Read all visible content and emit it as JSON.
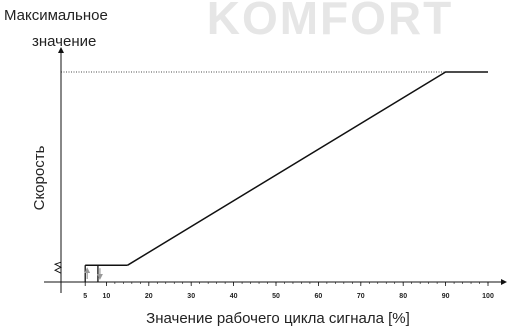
{
  "watermark": "KOMFORT",
  "chart_data": {
    "type": "line",
    "title": "",
    "xlabel": "Значение рабочего цикла сигнала [%]",
    "ylabel": "Скорость",
    "ymax_label_line1": "Максимальное",
    "ymax_label_line2": "значение",
    "xlim": [
      0,
      100
    ],
    "ylim": [
      0,
      100
    ],
    "x_ticks": [
      5,
      10,
      20,
      30,
      40,
      50,
      60,
      70,
      80,
      90,
      100
    ],
    "series": [
      {
        "x": [
          15,
          90,
          100
        ],
        "y": [
          8,
          100,
          100
        ]
      }
    ],
    "hysteresis": {
      "x_on": 5,
      "x_off": 8,
      "x_start": 15,
      "y_low": 8
    },
    "max_reference_line": {
      "y": 100,
      "style": "dotted"
    },
    "colors": {
      "line": "#111111",
      "arrow": "#999999",
      "axis": "#111111"
    }
  }
}
